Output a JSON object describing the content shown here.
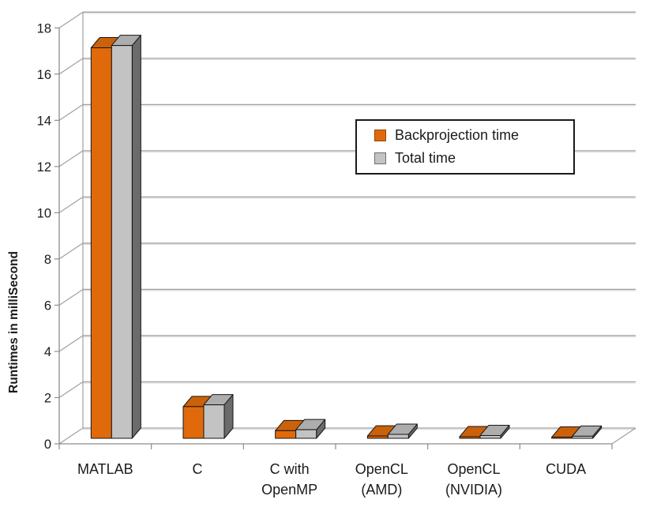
{
  "chart_data": {
    "type": "bar",
    "projection": "3d",
    "title": "",
    "xlabel": "",
    "ylabel": "Runtimes in milliSecond",
    "ylim": [
      0,
      18
    ],
    "yticks": [
      0,
      2,
      4,
      6,
      8,
      10,
      12,
      14,
      16,
      18
    ],
    "grid": true,
    "legend_position": "upper-right-inside",
    "categories": [
      {
        "name": "MATLAB",
        "lines": [
          "MATLAB"
        ]
      },
      {
        "name": "C",
        "lines": [
          "C"
        ]
      },
      {
        "name": "C with OpenMP",
        "lines": [
          "C with",
          "OpenMP"
        ]
      },
      {
        "name": "OpenCL (AMD)",
        "lines": [
          "OpenCL",
          "(AMD)"
        ]
      },
      {
        "name": "OpenCL (NVIDIA)",
        "lines": [
          "OpenCL",
          "(NVIDIA)"
        ]
      },
      {
        "name": "CUDA",
        "lines": [
          "CUDA"
        ]
      }
    ],
    "series": [
      {
        "name": "Backprojection time",
        "color": "#E06A0B",
        "top_color": "#CB6109",
        "side_color": "#A04E08",
        "swatch_border": "#8F4A06",
        "values": [
          16.9,
          1.37,
          0.33,
          0.1,
          0.07,
          0.05
        ]
      },
      {
        "name": "Total time",
        "color": "#C3C3C3",
        "top_color": "#ADADAD",
        "side_color": "#6B6B6B",
        "swatch_border": "#6E6E6E",
        "values": [
          17.0,
          1.45,
          0.37,
          0.17,
          0.12,
          0.09
        ]
      }
    ],
    "colors": {
      "gridline": "#a0a0a0",
      "gridline_shadow": "#dedede",
      "axis": "#8c8c8c",
      "outline": "#161616",
      "text": "#1a1a1a"
    }
  }
}
